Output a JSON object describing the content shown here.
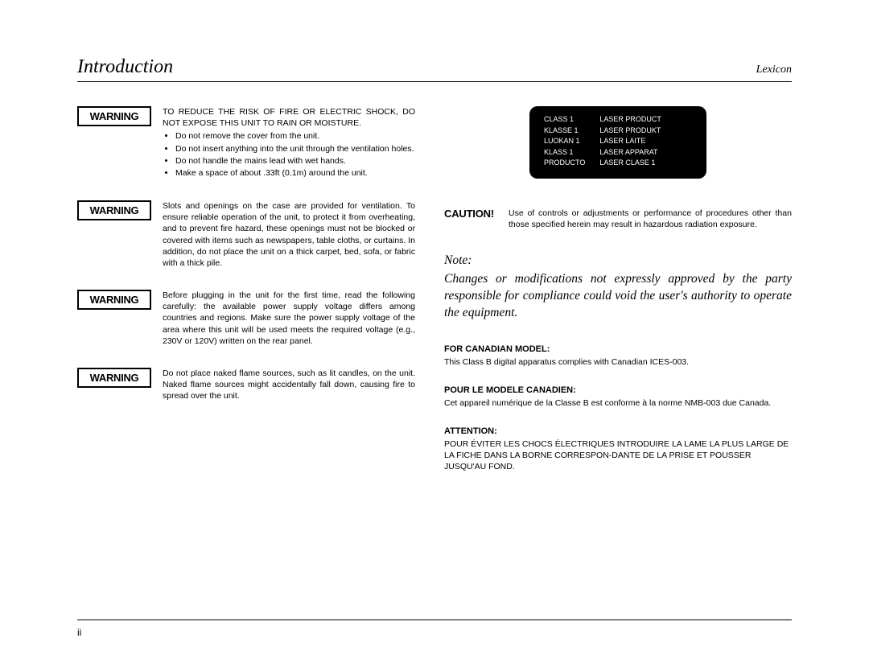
{
  "header": {
    "left": "Introduction",
    "right": "Lexicon"
  },
  "left_col": {
    "warnings": [
      {
        "label": "WARNING",
        "lead_caps": "TO REDUCE THE RISK OF FIRE OR ELECTRIC SHOCK, DO NOT EXPOSE THIS UNIT TO RAIN OR MOISTURE.",
        "bullets": [
          "Do not remove the cover from the unit.",
          "Do not insert anything into the unit through the ventilation holes.",
          "Do not handle the mains lead with wet hands.",
          "Make a space of about .33ft (0.1m) around the unit."
        ]
      },
      {
        "label": "WARNING",
        "body": "Slots and openings on the case are provided for ventilation. To ensure reliable operation of the unit, to protect it from overheating, and to prevent fire hazard, these openings must not be blocked or covered with items such as newspapers, table cloths, or curtains. In addition, do not place the unit on a thick carpet, bed, sofa, or fabric with a thick pile."
      },
      {
        "label": "WARNING",
        "body": "Before plugging in the unit for the first time, read the following carefully: the available power supply voltage differs among countries and regions. Make sure the power supply voltage of the area where this unit will be used meets the required voltage (e.g., 230V or 120V) written on the rear panel."
      },
      {
        "label": "WARNING",
        "body": "Do not place naked flame sources, such as lit candles, on the unit. Naked flame sources might accidentally fall down, causing fire to spread over the unit."
      }
    ]
  },
  "right_col": {
    "laser": {
      "col1": [
        "CLASS 1",
        "KLASSE 1",
        "LUOKAN 1",
        "KLASS 1",
        "PRODUCTO"
      ],
      "col2": [
        "LASER PRODUCT",
        "LASER PRODUKT",
        "LASER LAITE",
        "LASER APPARAT",
        "LASER CLASE 1"
      ]
    },
    "caution": {
      "label": "CAUTION!",
      "body": "Use of controls or adjustments or performance of procedures other than those specified herein may result in hazardous radiation exposure."
    },
    "note": {
      "label": "Note:",
      "body": "Changes or modifications not expressly approved by the party responsible for compliance could void the user's authority to operate the equipment."
    },
    "canadian": {
      "heading": "FOR CANADIAN MODEL:",
      "body": "This Class B digital apparatus complies with Canadian ICES-003."
    },
    "canadien": {
      "heading": "POUR LE MODELE CANADIEN:",
      "body": "Cet appareil numérique de la Classe B est conforme à la norme NMB-003 due Canada."
    },
    "attention": {
      "heading": "ATTENTION:",
      "body": "POUR ÉVITER LES CHOCS ÉLECTRIQUES INTRODUIRE LA LAME LA PLUS LARGE DE LA FICHE DANS LA BORNE CORRESPON-DANTE DE LA PRISE ET POUSSER JUSQU'AU FOND."
    }
  },
  "page_number": "ii"
}
